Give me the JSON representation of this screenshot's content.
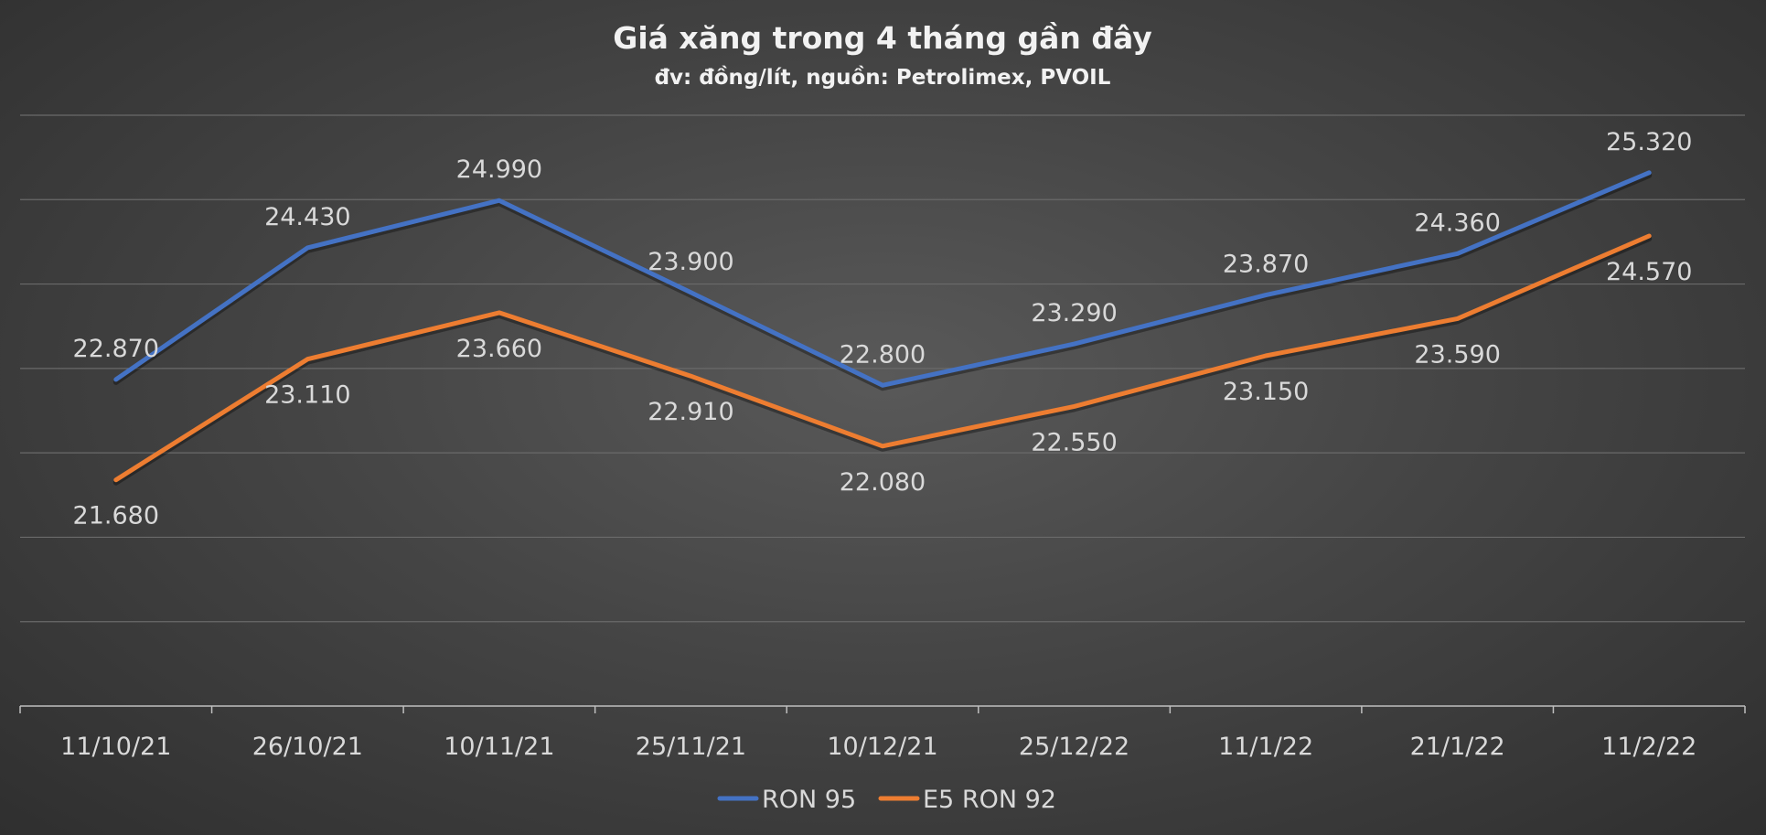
{
  "chart_data": {
    "type": "line",
    "title": "Giá xăng trong 4 tháng gần đây",
    "subtitle": "đv: đồng/lít, nguồn: Petrolimex, PVOIL",
    "categories": [
      "11/10/21",
      "26/10/21",
      "10/11/21",
      "25/11/21",
      "10/12/21",
      "25/12/22",
      "11/1/22",
      "21/1/22",
      "11/2/22"
    ],
    "series": [
      {
        "name": "RON 95",
        "color": "#4472c4",
        "values": [
          22870,
          24430,
          24990,
          23900,
          22800,
          23290,
          23870,
          24360,
          25320
        ],
        "labels": [
          "22.870",
          "24.430",
          "24.990",
          "23.900",
          "22.800",
          "23.290",
          "23.870",
          "24.360",
          "25.320"
        ],
        "label_position": "above"
      },
      {
        "name": "E5 RON 92",
        "color": "#ed7d31",
        "values": [
          21680,
          23110,
          23660,
          22910,
          22080,
          22550,
          23150,
          23590,
          24570
        ],
        "labels": [
          "21.680",
          "23.110",
          "23.660",
          "22.910",
          "22.080",
          "22.550",
          "23.150",
          "23.590",
          "24.570"
        ],
        "label_position": "below"
      }
    ],
    "xlabel": "",
    "ylabel": "",
    "ylim": [
      19000,
      26000
    ],
    "y_gridlines": [
      19000,
      20000,
      21000,
      22000,
      23000,
      24000,
      25000,
      26000
    ],
    "grid": true,
    "legend": "bottom",
    "axis_color": "#bfbfbf",
    "grid_color": "#6a6a6a",
    "text_color": "#d9d9d9"
  }
}
